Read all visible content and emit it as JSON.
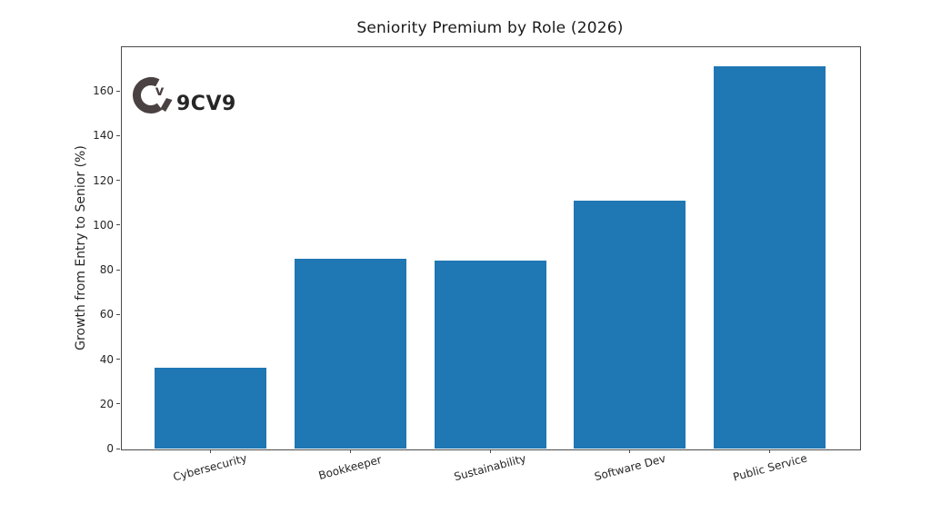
{
  "logo": {
    "text": "9CV9",
    "icon": "9cv9-circle-v-icon",
    "color": "#4a4142"
  },
  "chart_data": {
    "type": "bar",
    "title": "Seniority Premium by Role (2026)",
    "xlabel": "",
    "ylabel": "Growth from Entry to Senior (%)",
    "categories": [
      "Cybersecurity",
      "Bookkeeper",
      "Sustainability",
      "Software Dev",
      "Public Service"
    ],
    "values": [
      36,
      85,
      84,
      111,
      171
    ],
    "yticks": [
      0,
      20,
      40,
      60,
      80,
      100,
      120,
      140,
      160
    ],
    "ylim": [
      0,
      180
    ],
    "bar_color": "#1f77b4",
    "axis_color": "#4a4a4a",
    "grid": false,
    "legend": null,
    "x_tick_rotation_deg": 15
  }
}
